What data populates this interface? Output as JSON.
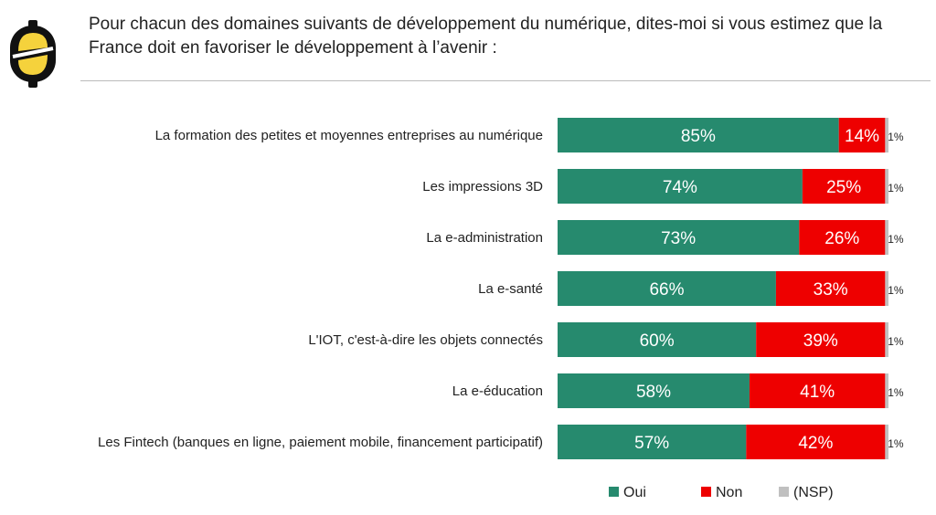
{
  "title": "Pour chacun des domaines suivants de développement du numérique, dites-moi si vous estimez que la France doit en favoriser le développement à l’avenir :",
  "colors": {
    "oui": "#268a6e",
    "non": "#ee0000",
    "nsp": "#c0c0c0",
    "logo_yellow": "#f5d23c"
  },
  "icons": {
    "logo": "logo-icon"
  },
  "chart_data": {
    "type": "bar",
    "orientation": "horizontal",
    "stacked": true,
    "categories": [
      "La formation des petites et moyennes entreprises au numérique",
      "Les impressions 3D",
      "La e-administration",
      "La e-santé",
      "L'IOT, c'est-à-dire les objets connectés",
      "La e-éducation",
      "Les Fintech (banques en ligne, paiement mobile, financement participatif)"
    ],
    "series": [
      {
        "name": "Oui",
        "values": [
          85,
          74,
          73,
          66,
          60,
          58,
          57
        ],
        "labels": [
          "85%",
          "74%",
          "73%",
          "66%",
          "60%",
          "58%",
          "57%"
        ]
      },
      {
        "name": "Non",
        "values": [
          14,
          25,
          26,
          33,
          39,
          41,
          42
        ],
        "labels": [
          "14%",
          "25%",
          "26%",
          "33%",
          "39%",
          "41%",
          "42%"
        ]
      },
      {
        "name": "(NSP)",
        "values": [
          1,
          1,
          1,
          1,
          1,
          1,
          1
        ],
        "labels": [
          "1%",
          "1%",
          "1%",
          "1%",
          "1%",
          "1%",
          "1%"
        ]
      }
    ],
    "xlim": [
      0,
      100
    ],
    "legend_position": "bottom"
  }
}
